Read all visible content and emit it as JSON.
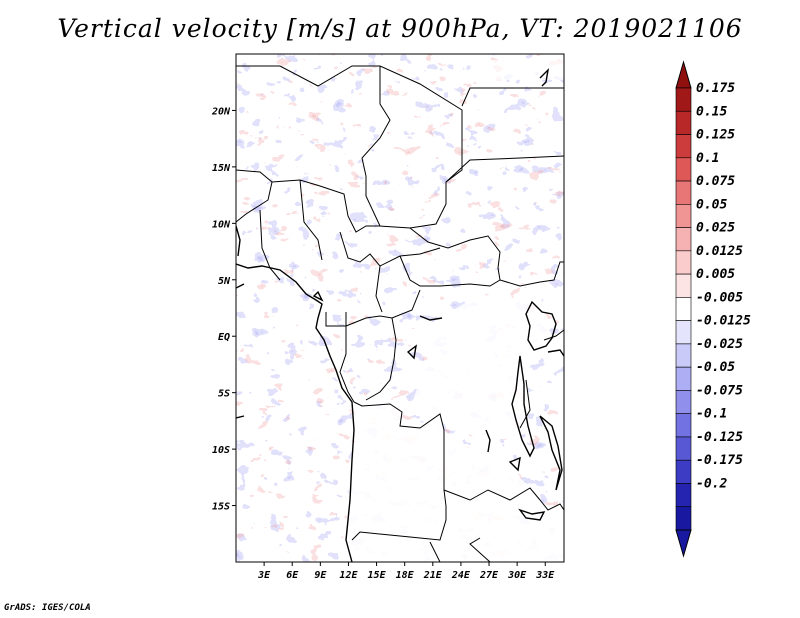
{
  "title": "Vertical velocity [m/s] at 900hPa, VT: 2019021106",
  "credit": "GrADS: IGES/COLA",
  "map": {
    "lon_range": [
      0,
      35
    ],
    "lat_range": [
      -20,
      25
    ],
    "lon_ticks": [
      {
        "value": 3,
        "label": "3E"
      },
      {
        "value": 6,
        "label": "6E"
      },
      {
        "value": 9,
        "label": "9E"
      },
      {
        "value": 12,
        "label": "12E"
      },
      {
        "value": 15,
        "label": "15E"
      },
      {
        "value": 18,
        "label": "18E"
      },
      {
        "value": 21,
        "label": "21E"
      },
      {
        "value": 24,
        "label": "24E"
      },
      {
        "value": 27,
        "label": "27E"
      },
      {
        "value": 30,
        "label": "30E"
      },
      {
        "value": 33,
        "label": "33E"
      }
    ],
    "lat_ticks": [
      {
        "value": 20,
        "label": "20N"
      },
      {
        "value": 15,
        "label": "15N"
      },
      {
        "value": 10,
        "label": "10N"
      },
      {
        "value": 5,
        "label": "5N"
      },
      {
        "value": 0,
        "label": "EQ"
      },
      {
        "value": -5,
        "label": "5S"
      },
      {
        "value": -10,
        "label": "10S"
      },
      {
        "value": -15,
        "label": "15S"
      }
    ]
  },
  "colorbar": {
    "levels": [
      {
        "label": "0.175",
        "color": "#a01818"
      },
      {
        "label": "0.15",
        "color": "#b82828"
      },
      {
        "label": "0.125",
        "color": "#cc3c3c"
      },
      {
        "label": "0.1",
        "color": "#de5858"
      },
      {
        "label": "0.075",
        "color": "#e87676"
      },
      {
        "label": "0.05",
        "color": "#f09494"
      },
      {
        "label": "0.025",
        "color": "#f6b2b2"
      },
      {
        "label": "0.0125",
        "color": "#fbcccc"
      },
      {
        "label": "0.005",
        "color": "#fde4e4"
      },
      {
        "label": "-0.005",
        "color": "#ffffff"
      },
      {
        "label": "-0.0125",
        "color": "#e4e4fc"
      },
      {
        "label": "-0.025",
        "color": "#cacaf8"
      },
      {
        "label": "-0.05",
        "color": "#aeaef4"
      },
      {
        "label": "-0.075",
        "color": "#9090ec"
      },
      {
        "label": "-0.1",
        "color": "#7272e2"
      },
      {
        "label": "-0.125",
        "color": "#5858d4"
      },
      {
        "label": "-0.175",
        "color": "#3c3cc4"
      },
      {
        "label": "-0.2",
        "color": "#2424b0"
      }
    ],
    "top_color": "#901010",
    "bottom_color": "#1818a0"
  }
}
